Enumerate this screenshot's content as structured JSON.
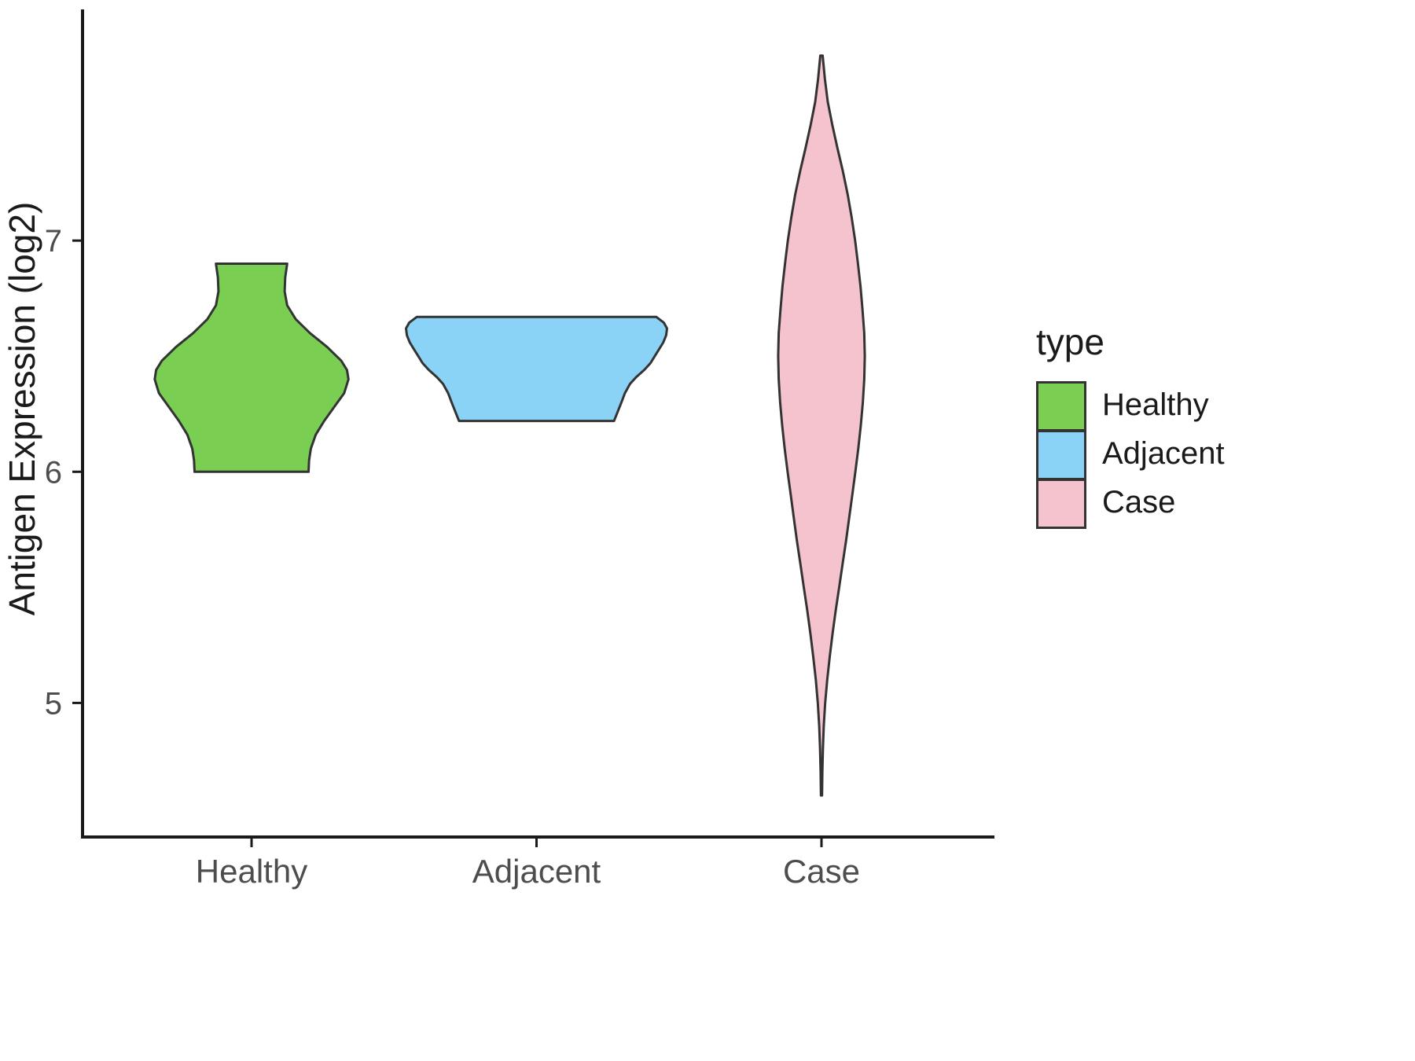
{
  "chart_data": {
    "type": "violin",
    "title": "",
    "xlabel": "",
    "ylabel": "Antigen Expression (log2)",
    "categories": [
      "Healthy",
      "Adjacent",
      "Case"
    ],
    "y_ticks": [
      5,
      6,
      7
    ],
    "ylim": [
      4.42,
      8.0
    ],
    "grid": "off",
    "half_width_unit": "fraction of category spacing",
    "legend": {
      "title": "type",
      "position": "right",
      "entries": [
        {
          "label": "Healthy",
          "color": "#7ACE52"
        },
        {
          "label": "Adjacent",
          "color": "#8BD2F7"
        },
        {
          "label": "Case",
          "color": "#F4C3CE"
        }
      ]
    },
    "series": [
      {
        "name": "Healthy",
        "color": "#7ACE52",
        "value_range": [
          6.0,
          6.9
        ],
        "profile": [
          [
            6.9,
            0.125
          ],
          [
            6.84,
            0.118
          ],
          [
            6.78,
            0.116
          ],
          [
            6.72,
            0.125
          ],
          [
            6.66,
            0.155
          ],
          [
            6.6,
            0.205
          ],
          [
            6.54,
            0.265
          ],
          [
            6.48,
            0.315
          ],
          [
            6.44,
            0.335
          ],
          [
            6.4,
            0.34
          ],
          [
            6.34,
            0.325
          ],
          [
            6.28,
            0.29
          ],
          [
            6.22,
            0.255
          ],
          [
            6.16,
            0.225
          ],
          [
            6.1,
            0.208
          ],
          [
            6.05,
            0.202
          ],
          [
            6.0,
            0.2
          ]
        ]
      },
      {
        "name": "Adjacent",
        "color": "#8BD2F7",
        "value_range": [
          6.22,
          6.67
        ],
        "profile": [
          [
            6.67,
            0.42
          ],
          [
            6.645,
            0.447
          ],
          [
            6.62,
            0.458
          ],
          [
            6.59,
            0.455
          ],
          [
            6.56,
            0.445
          ],
          [
            6.53,
            0.43
          ],
          [
            6.5,
            0.415
          ],
          [
            6.47,
            0.4
          ],
          [
            6.44,
            0.378
          ],
          [
            6.41,
            0.35
          ],
          [
            6.38,
            0.328
          ],
          [
            6.34,
            0.31
          ],
          [
            6.3,
            0.298
          ],
          [
            6.26,
            0.285
          ],
          [
            6.22,
            0.272
          ]
        ]
      },
      {
        "name": "Case",
        "color": "#F4C3CE",
        "value_range": [
          4.6,
          7.8
        ],
        "profile": [
          [
            7.8,
            0.004
          ],
          [
            7.7,
            0.012
          ],
          [
            7.6,
            0.022
          ],
          [
            7.5,
            0.038
          ],
          [
            7.4,
            0.056
          ],
          [
            7.3,
            0.075
          ],
          [
            7.2,
            0.092
          ],
          [
            7.1,
            0.106
          ],
          [
            7.0,
            0.118
          ],
          [
            6.9,
            0.128
          ],
          [
            6.8,
            0.137
          ],
          [
            6.7,
            0.144
          ],
          [
            6.6,
            0.15
          ],
          [
            6.5,
            0.152
          ],
          [
            6.4,
            0.15
          ],
          [
            6.3,
            0.145
          ],
          [
            6.2,
            0.138
          ],
          [
            6.1,
            0.129
          ],
          [
            6.0,
            0.119
          ],
          [
            5.9,
            0.108
          ],
          [
            5.8,
            0.097
          ],
          [
            5.7,
            0.086
          ],
          [
            5.6,
            0.074
          ],
          [
            5.5,
            0.062
          ],
          [
            5.4,
            0.05
          ],
          [
            5.3,
            0.039
          ],
          [
            5.2,
            0.029
          ],
          [
            5.1,
            0.02
          ],
          [
            5.0,
            0.013
          ],
          [
            4.9,
            0.008
          ],
          [
            4.8,
            0.005
          ],
          [
            4.7,
            0.003
          ],
          [
            4.6,
            0.002
          ]
        ]
      }
    ],
    "style": {
      "violin_stroke": "#333333",
      "violin_stroke_width": 3,
      "axis_color": "#1a1a1a",
      "tick_label_color": "#4d4d4d",
      "axis_title_color": "#1a1a1a",
      "background": "#ffffff"
    }
  }
}
